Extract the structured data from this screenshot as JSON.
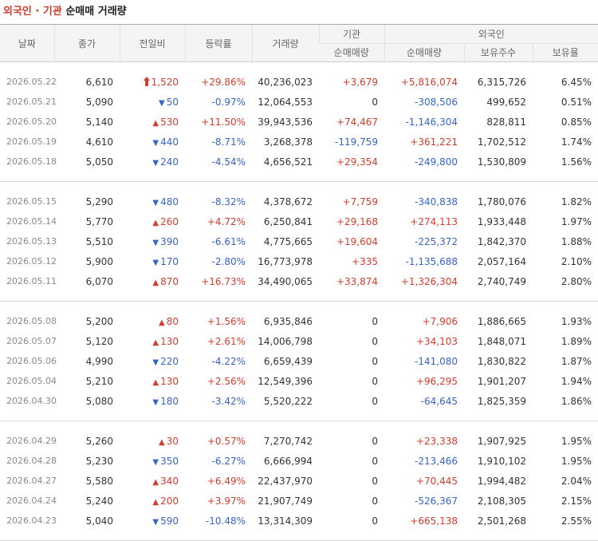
{
  "title": {
    "part1": "외국인",
    "dot": " · ",
    "part2": "기관",
    "part3": " 순매매 거래량"
  },
  "headers": {
    "date": "날짜",
    "close": "종가",
    "change": "전일비",
    "rate": "등락률",
    "volume": "거래량",
    "inst_group": "기관",
    "foreign_group": "외국인",
    "inst_net": "순매매량",
    "foreign_net": "순매매량",
    "holdings": "보유주수",
    "ratio": "보유율"
  },
  "colors": {
    "up": "#d43c2c",
    "down": "#3565c9"
  },
  "groups": [
    [
      {
        "date": "2026.05.22",
        "close": "6,610",
        "dir": "limit-up",
        "change": "1,520",
        "rate": "+29.86%",
        "volume": "40,236,023",
        "inst": "+3,679",
        "foreign": "+5,816,074",
        "holdings": "6,315,726",
        "ratio": "6.45%"
      },
      {
        "date": "2026.05.21",
        "close": "5,090",
        "dir": "down",
        "change": "50",
        "rate": "-0.97%",
        "volume": "12,064,553",
        "inst": "0",
        "foreign": "-308,506",
        "holdings": "499,652",
        "ratio": "0.51%"
      },
      {
        "date": "2026.05.20",
        "close": "5,140",
        "dir": "up",
        "change": "530",
        "rate": "+11.50%",
        "volume": "39,943,536",
        "inst": "+74,467",
        "foreign": "-1,146,304",
        "holdings": "828,811",
        "ratio": "0.85%"
      },
      {
        "date": "2026.05.19",
        "close": "4,610",
        "dir": "down",
        "change": "440",
        "rate": "-8.71%",
        "volume": "3,268,378",
        "inst": "-119,759",
        "foreign": "+361,221",
        "holdings": "1,702,512",
        "ratio": "1.74%"
      },
      {
        "date": "2026.05.18",
        "close": "5,050",
        "dir": "down",
        "change": "240",
        "rate": "-4.54%",
        "volume": "4,656,521",
        "inst": "+29,354",
        "foreign": "-249,800",
        "holdings": "1,530,809",
        "ratio": "1.56%"
      }
    ],
    [
      {
        "date": "2026.05.15",
        "close": "5,290",
        "dir": "down",
        "change": "480",
        "rate": "-8.32%",
        "volume": "4,378,672",
        "inst": "+7,759",
        "foreign": "-340,838",
        "holdings": "1,780,076",
        "ratio": "1.82%"
      },
      {
        "date": "2026.05.14",
        "close": "5,770",
        "dir": "up",
        "change": "260",
        "rate": "+4.72%",
        "volume": "6,250,841",
        "inst": "+29,168",
        "foreign": "+274,113",
        "holdings": "1,933,448",
        "ratio": "1.97%"
      },
      {
        "date": "2026.05.13",
        "close": "5,510",
        "dir": "down",
        "change": "390",
        "rate": "-6.61%",
        "volume": "4,775,665",
        "inst": "+19,604",
        "foreign": "-225,372",
        "holdings": "1,842,370",
        "ratio": "1.88%"
      },
      {
        "date": "2026.05.12",
        "close": "5,900",
        "dir": "down",
        "change": "170",
        "rate": "-2.80%",
        "volume": "16,773,978",
        "inst": "+335",
        "foreign": "-1,135,688",
        "holdings": "2,057,164",
        "ratio": "2.10%"
      },
      {
        "date": "2026.05.11",
        "close": "6,070",
        "dir": "up",
        "change": "870",
        "rate": "+16.73%",
        "volume": "34,490,065",
        "inst": "+33,874",
        "foreign": "+1,326,304",
        "holdings": "2,740,749",
        "ratio": "2.80%"
      }
    ],
    [
      {
        "date": "2026.05.08",
        "close": "5,200",
        "dir": "up",
        "change": "80",
        "rate": "+1.56%",
        "volume": "6,935,846",
        "inst": "0",
        "foreign": "+7,906",
        "holdings": "1,886,665",
        "ratio": "1.93%"
      },
      {
        "date": "2026.05.07",
        "close": "5,120",
        "dir": "up",
        "change": "130",
        "rate": "+2.61%",
        "volume": "14,006,798",
        "inst": "0",
        "foreign": "+34,103",
        "holdings": "1,848,071",
        "ratio": "1.89%"
      },
      {
        "date": "2026.05.06",
        "close": "4,990",
        "dir": "down",
        "change": "220",
        "rate": "-4.22%",
        "volume": "6,659,439",
        "inst": "0",
        "foreign": "-141,080",
        "holdings": "1,830,822",
        "ratio": "1.87%"
      },
      {
        "date": "2026.05.04",
        "close": "5,210",
        "dir": "up",
        "change": "130",
        "rate": "+2.56%",
        "volume": "12,549,396",
        "inst": "0",
        "foreign": "+96,295",
        "holdings": "1,901,207",
        "ratio": "1.94%"
      },
      {
        "date": "2026.04.30",
        "close": "5,080",
        "dir": "down",
        "change": "180",
        "rate": "-3.42%",
        "volume": "5,520,222",
        "inst": "0",
        "foreign": "-64,645",
        "holdings": "1,825,359",
        "ratio": "1.86%"
      }
    ],
    [
      {
        "date": "2026.04.29",
        "close": "5,260",
        "dir": "up",
        "change": "30",
        "rate": "+0.57%",
        "volume": "7,270,742",
        "inst": "0",
        "foreign": "+23,338",
        "holdings": "1,907,925",
        "ratio": "1.95%"
      },
      {
        "date": "2026.04.28",
        "close": "5,230",
        "dir": "down",
        "change": "350",
        "rate": "-6.27%",
        "volume": "6,666,994",
        "inst": "0",
        "foreign": "-213,466",
        "holdings": "1,910,102",
        "ratio": "1.95%"
      },
      {
        "date": "2026.04.27",
        "close": "5,580",
        "dir": "up",
        "change": "340",
        "rate": "+6.49%",
        "volume": "22,437,970",
        "inst": "0",
        "foreign": "+70,445",
        "holdings": "1,994,482",
        "ratio": "2.04%"
      },
      {
        "date": "2026.04.24",
        "close": "5,240",
        "dir": "up",
        "change": "200",
        "rate": "+3.97%",
        "volume": "21,907,749",
        "inst": "0",
        "foreign": "-526,367",
        "holdings": "2,108,305",
        "ratio": "2.15%"
      },
      {
        "date": "2026.04.23",
        "close": "5,040",
        "dir": "down",
        "change": "590",
        "rate": "-10.48%",
        "volume": "13,314,309",
        "inst": "0",
        "foreign": "+665,138",
        "holdings": "2,501,268",
        "ratio": "2.55%"
      }
    ]
  ]
}
